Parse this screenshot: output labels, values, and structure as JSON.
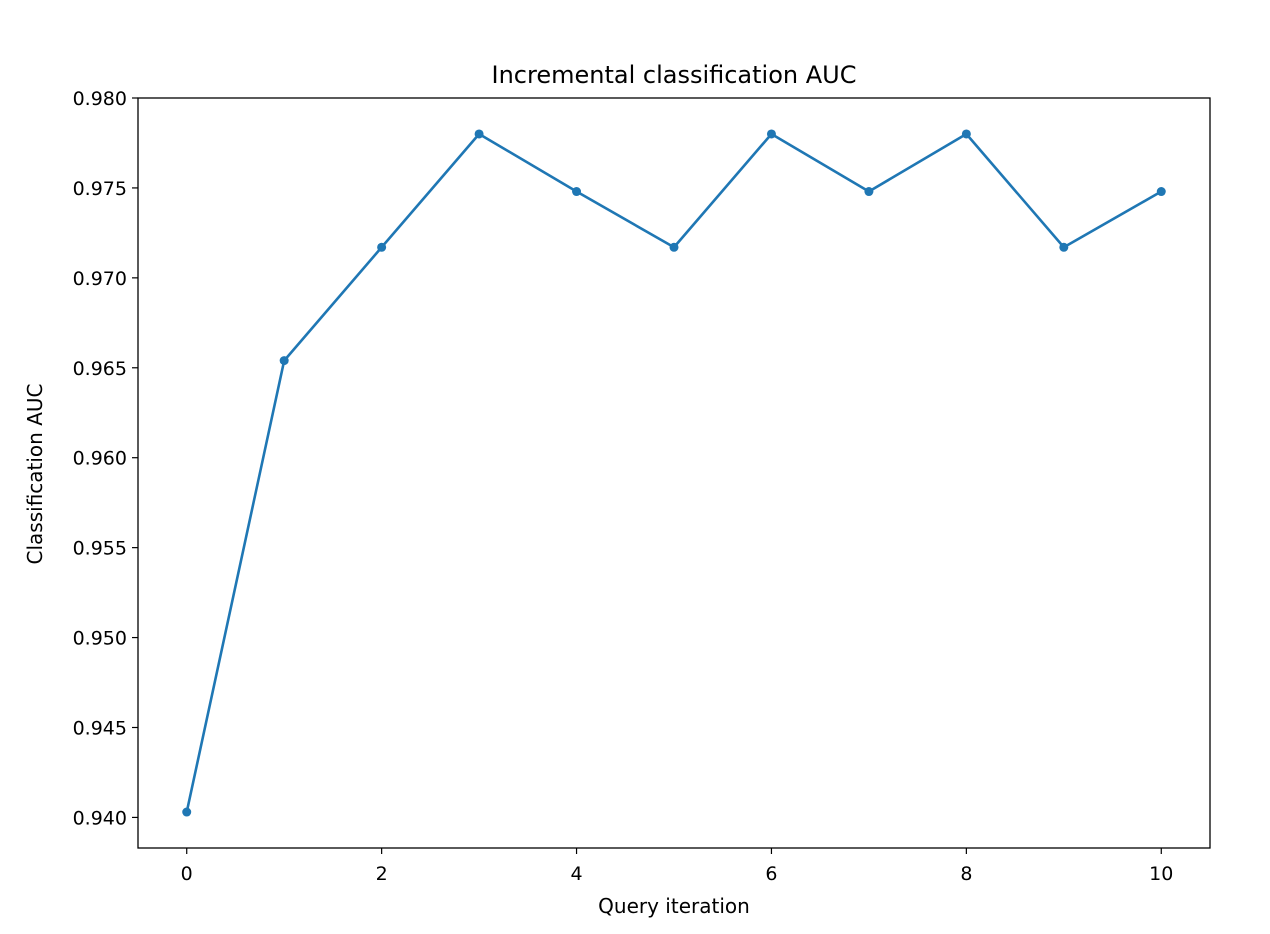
{
  "chart_data": {
    "type": "line",
    "title": "Incremental classification AUC",
    "xlabel": "Query iteration",
    "ylabel": "Classification AUC",
    "xlim": [
      -0.5,
      10.5
    ],
    "ylim": [
      0.9383,
      0.98
    ],
    "xticks": [
      0,
      2,
      4,
      6,
      8,
      10
    ],
    "xtick_labels": [
      "0",
      "2",
      "4",
      "6",
      "8",
      "10"
    ],
    "yticks": [
      0.94,
      0.945,
      0.95,
      0.955,
      0.96,
      0.965,
      0.97,
      0.975,
      0.98
    ],
    "ytick_labels": [
      "0.940",
      "0.945",
      "0.950",
      "0.955",
      "0.960",
      "0.965",
      "0.970",
      "0.975",
      "0.980"
    ],
    "grid": false,
    "color": "#1f77b4",
    "marker": "circle",
    "x": [
      0,
      1,
      2,
      3,
      4,
      5,
      6,
      7,
      8,
      9,
      10
    ],
    "y": [
      0.9403,
      0.9654,
      0.9717,
      0.978,
      0.9748,
      0.9717,
      0.978,
      0.9748,
      0.978,
      0.9717,
      0.9748
    ]
  }
}
